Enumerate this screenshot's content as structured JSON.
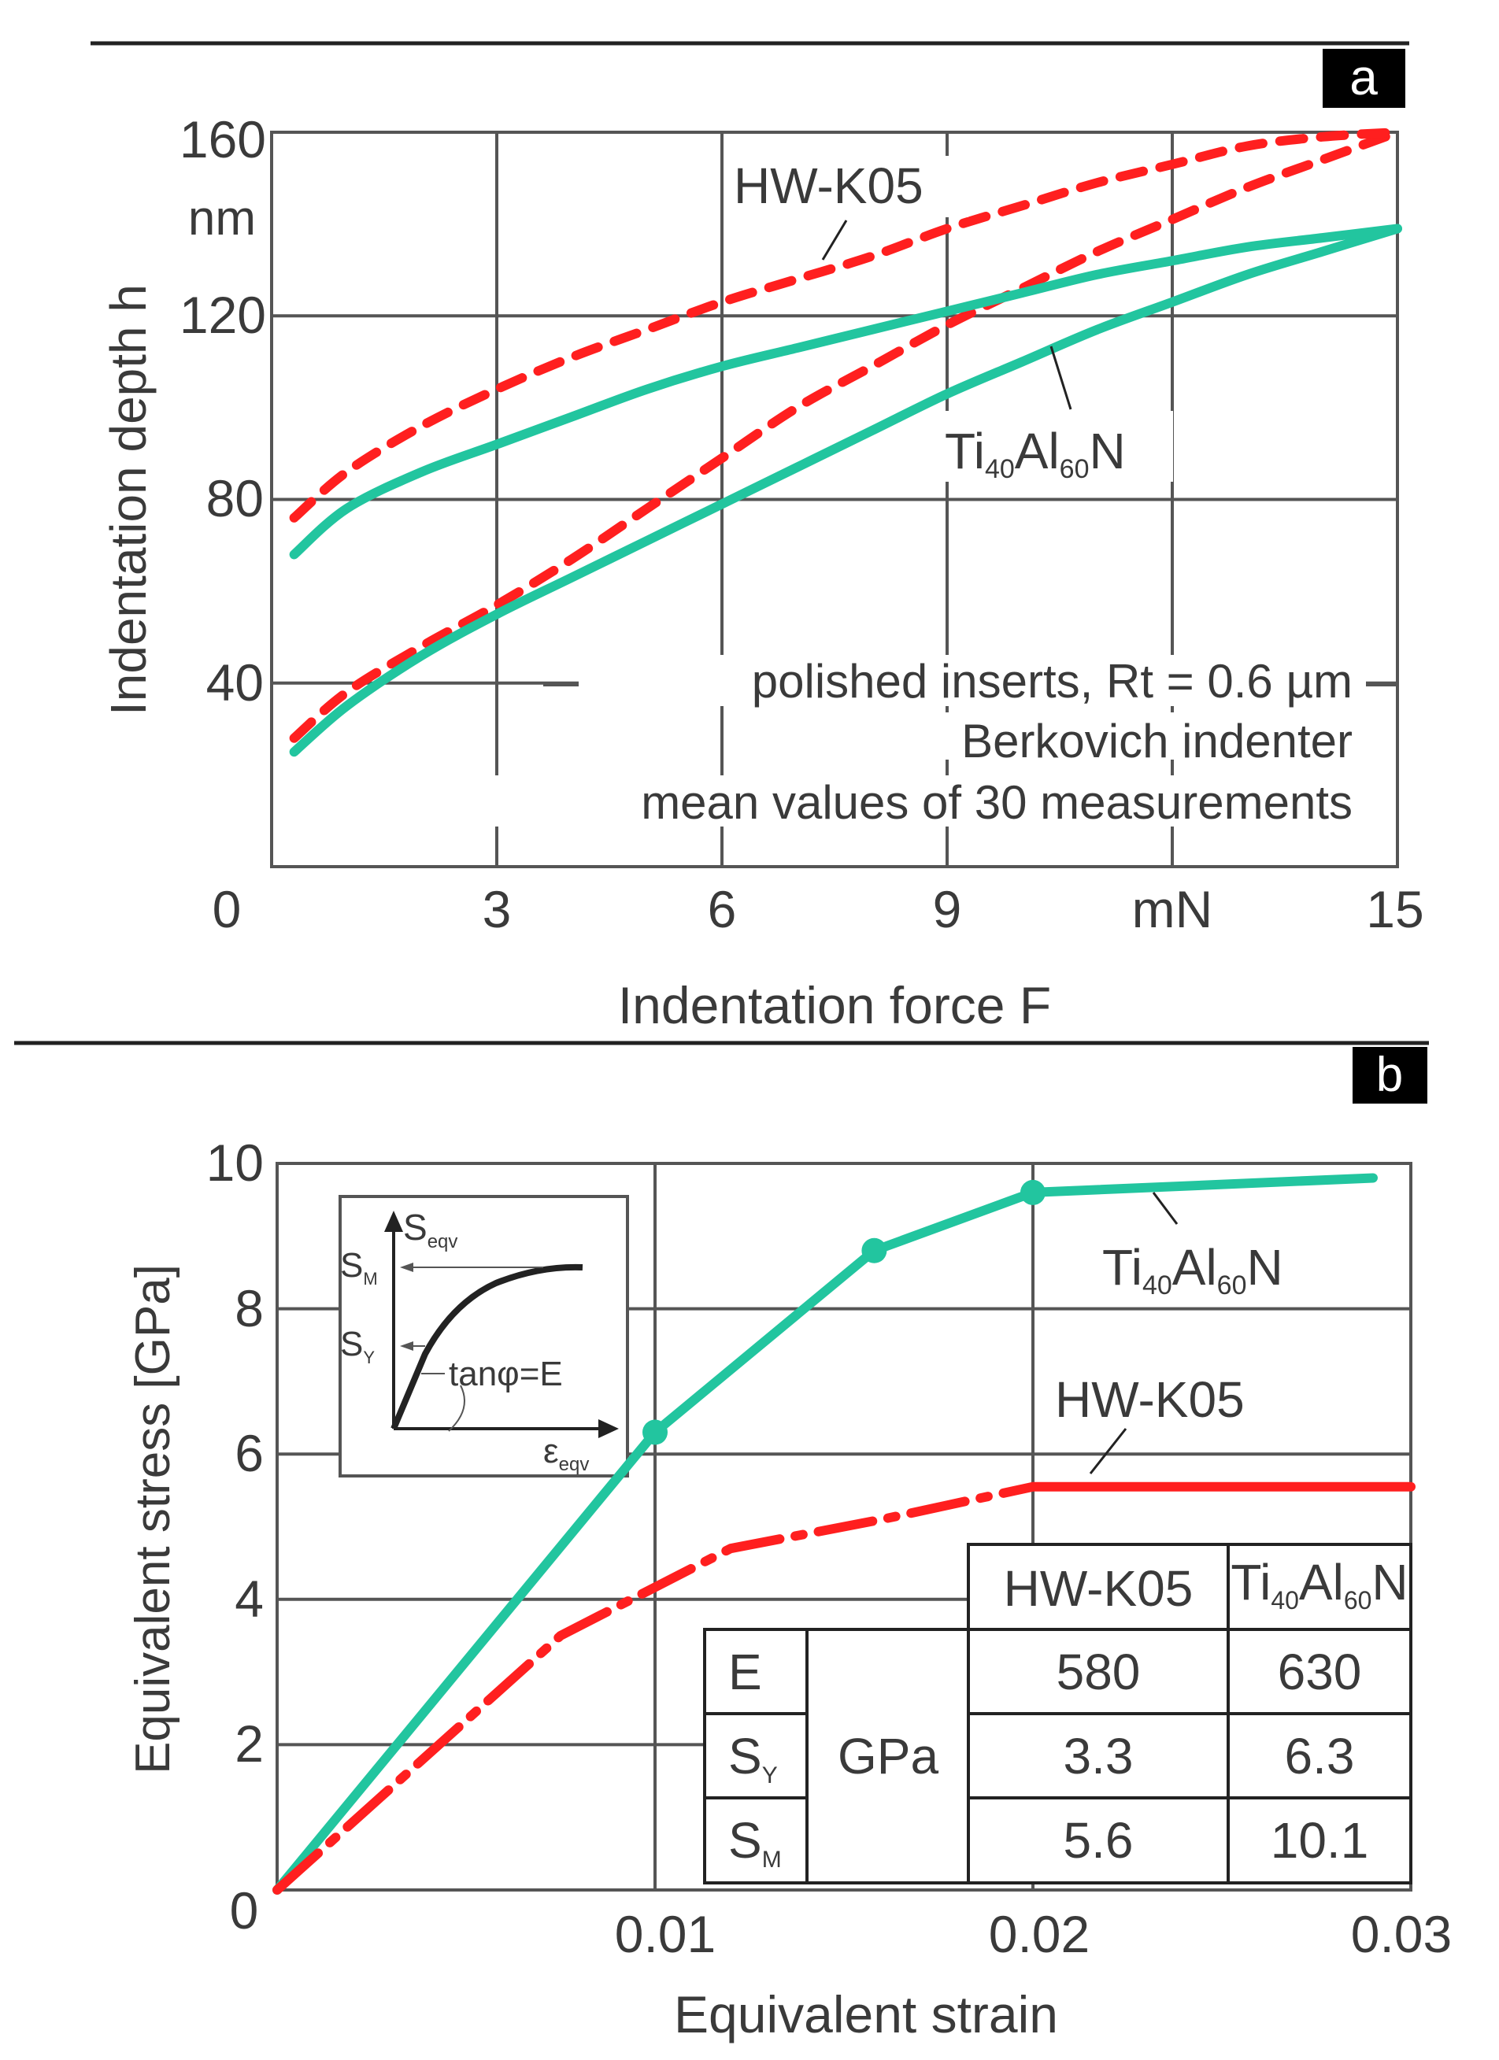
{
  "colors": {
    "ticoat": "#22c59f",
    "hwk05": "#ff1f1f",
    "grid": "#444444",
    "text": "#3a3a3a"
  },
  "chart_data": [
    {
      "panel": "a",
      "type": "line",
      "xlabel": "Indentation force F",
      "ylabel": "Indentation depth h",
      "xlim": [
        0,
        15
      ],
      "ylim": [
        0,
        160
      ],
      "xticks": [
        "0",
        "3",
        "6",
        "9",
        "mN",
        "15"
      ],
      "yticks": [
        "40",
        "80",
        "120",
        "160"
      ],
      "yunit": "nm",
      "annotations": [
        "polished inserts, Rt = 0.6 µm",
        "Berkovich indenter",
        "mean values of 30 measurements"
      ],
      "series": [
        {
          "name": "HW-K05",
          "role": "loading",
          "style": "dashed",
          "color": "#ff1f1f",
          "x": [
            0.3,
            1,
            2,
            3,
            4,
            5,
            6,
            7,
            8,
            9,
            10,
            11,
            12,
            13,
            14,
            15
          ],
          "y": [
            28,
            38,
            48,
            57,
            67,
            78,
            89,
            100,
            109,
            118,
            126,
            134,
            141,
            148,
            154,
            160
          ]
        },
        {
          "name": "HW-K05",
          "role": "unloading",
          "style": "dashed",
          "color": "#ff1f1f",
          "x": [
            0.3,
            1,
            2,
            3,
            4,
            5,
            6,
            7,
            8,
            9,
            10,
            11,
            12,
            13,
            14,
            15
          ],
          "y": [
            76,
            86,
            96,
            104,
            111,
            117,
            123,
            128,
            133,
            139,
            144,
            149,
            153,
            157,
            159,
            160
          ]
        },
        {
          "name": "Ti40Al60N",
          "role": "loading",
          "style": "solid",
          "color": "#22c59f",
          "x": [
            0.3,
            1,
            2,
            3,
            4,
            5,
            6,
            7,
            8,
            9,
            10,
            11,
            12,
            13,
            14,
            15
          ],
          "y": [
            25,
            35,
            46,
            55,
            63,
            71,
            79,
            87,
            95,
            103,
            110,
            117,
            123,
            129,
            134,
            139
          ]
        },
        {
          "name": "Ti40Al60N",
          "role": "unloading",
          "style": "solid",
          "color": "#22c59f",
          "x": [
            0.3,
            1,
            2,
            3,
            4,
            5,
            6,
            7,
            8,
            9,
            10,
            11,
            12,
            13,
            14,
            15
          ],
          "y": [
            68,
            78,
            86,
            92,
            98,
            104,
            109,
            113,
            117,
            121,
            125,
            129,
            132,
            135,
            137,
            139
          ]
        }
      ],
      "labels": [
        {
          "text": "HW-K05",
          "series": "HW-K05"
        },
        {
          "text": "Ti",
          "sub1": "40",
          "mid": "Al",
          "sub2": "60",
          "tail": "N",
          "series": "Ti40Al60N"
        }
      ]
    },
    {
      "panel": "b",
      "type": "line",
      "xlabel": "Equivalent strain",
      "ylabel": "Equivalent stress [GPa]",
      "xlim": [
        0,
        0.03
      ],
      "ylim": [
        0,
        10
      ],
      "xticks": [
        "0.01",
        "0.02",
        "0.03"
      ],
      "yticks": [
        "0",
        "2",
        "4",
        "6",
        "8",
        "10"
      ],
      "series": [
        {
          "name": "Ti40Al60N",
          "style": "solid",
          "color": "#22c59f",
          "x": [
            0,
            0.01,
            0.0158,
            0.02,
            0.029
          ],
          "y": [
            0,
            6.3,
            8.8,
            9.6,
            9.8
          ],
          "markers": [
            0.01,
            0.0158,
            0.02
          ]
        },
        {
          "name": "HW-K05",
          "style": "dashdot",
          "color": "#ff1f1f",
          "x": [
            0,
            0.0075,
            0.012,
            0.016,
            0.02
          ],
          "y": [
            0,
            3.5,
            4.7,
            5.1,
            5.55
          ]
        },
        {
          "name": "HW-K05",
          "style": "solid",
          "color": "#ff1f1f",
          "x": [
            0.02,
            0.03
          ],
          "y": [
            5.55,
            5.55
          ]
        }
      ],
      "labels": [
        {
          "text": "Ti",
          "sub1": "40",
          "mid": "Al",
          "sub2": "60",
          "tail": "N",
          "series": "Ti40Al60N"
        },
        {
          "text": "HW-K05",
          "series": "HW-K05"
        }
      ],
      "inset": {
        "y_axis_label": "S",
        "y_axis_sub": "eqv",
        "x_axis_label": "ε",
        "x_axis_sub": "eqv",
        "ym_label": "S",
        "ym_sub": "M",
        "yy_label": "S",
        "yy_sub": "Y",
        "slope_label": "tanφ=E"
      },
      "table": {
        "headers": [
          "HW-K05",
          "Ti40Al60N"
        ],
        "header2": {
          "ti": "Ti",
          "sub1": "40",
          "al": "Al",
          "sub2": "60",
          "n": "N"
        },
        "unit": "GPa",
        "rows": [
          {
            "label": "E",
            "sub": "",
            "values": [
              "580",
              "630"
            ]
          },
          {
            "label": "S",
            "sub": "Y",
            "values": [
              "3.3",
              "6.3"
            ]
          },
          {
            "label": "S",
            "sub": "M",
            "values": [
              "5.6",
              "10.1"
            ]
          }
        ]
      }
    }
  ],
  "panels": {
    "a": {
      "tag": "a"
    },
    "b": {
      "tag": "b"
    }
  }
}
